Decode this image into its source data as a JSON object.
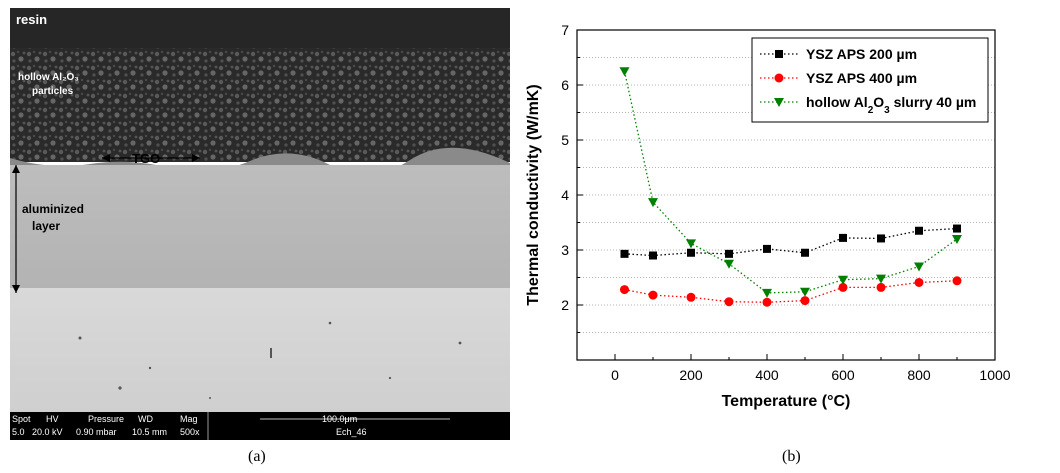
{
  "panel_a": {
    "labels": {
      "resin": "resin",
      "hollow": "hollow Al₂O₃",
      "particles": "particles",
      "tgo": "TGO",
      "aluminized": "aluminized",
      "layer": "layer"
    },
    "databar": {
      "headers": [
        "Spot",
        "HV",
        "Pressure",
        "WD",
        "Mag"
      ],
      "values": [
        "5.0",
        "20.0 kV",
        "0.90  mbar",
        "10.5 mm",
        "500x"
      ],
      "scale": "100.0μm",
      "sample_id": "Ech_46"
    }
  },
  "captions": {
    "a": "(a)",
    "b": "(b)"
  },
  "chart_data": {
    "type": "line",
    "xlabel": "Temperature (°C)",
    "ylabel": "Thermal conductivity (W/mK)",
    "xlim": [
      -100,
      1000
    ],
    "ylim": [
      1,
      7
    ],
    "xticks": [
      0,
      200,
      400,
      600,
      800,
      1000
    ],
    "yticks": [
      2,
      3,
      4,
      5,
      6,
      7
    ],
    "horizontal_grid": true,
    "grid_style": "dotted",
    "legend_position": "top-right",
    "series": [
      {
        "name": "YSZ APS 200 µm",
        "color": "#000000",
        "marker": "square",
        "x": [
          25,
          100,
          200,
          300,
          400,
          500,
          600,
          700,
          800,
          900
        ],
        "y": [
          2.93,
          2.9,
          2.95,
          2.93,
          3.02,
          2.95,
          3.22,
          3.21,
          3.35,
          3.39
        ]
      },
      {
        "name": "YSZ APS 400 µm",
        "color": "#ff0000",
        "marker": "circle",
        "x": [
          25,
          100,
          200,
          300,
          400,
          500,
          600,
          700,
          800,
          900
        ],
        "y": [
          2.28,
          2.18,
          2.14,
          2.06,
          2.05,
          2.08,
          2.32,
          2.32,
          2.41,
          2.44
        ]
      },
      {
        "name": "hollow Al2O3 slurry 40 µm",
        "color": "#008000",
        "marker": "triangle-down",
        "x": [
          25,
          100,
          200,
          300,
          400,
          500,
          600,
          700,
          800,
          900
        ],
        "y": [
          6.25,
          3.87,
          3.12,
          2.75,
          2.22,
          2.24,
          2.46,
          2.48,
          2.7,
          3.2
        ]
      }
    ]
  }
}
